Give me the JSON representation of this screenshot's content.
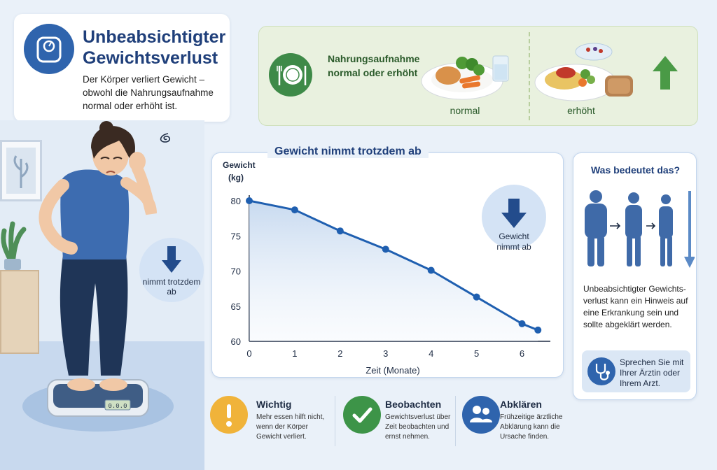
{
  "header": {
    "title": "Unbeabsichtigter Gewichtsverlust",
    "subtitle": "Der Körper verliert Gewicht – obwohl die Nahrungsaufnahme normal oder erhöht ist."
  },
  "food": {
    "heading": "Nahrungsaufnahme normal oder erhöht",
    "normal_label": "normal",
    "increased_label": "erhöht"
  },
  "person": {
    "badge_text": "nimmt trotzdem ab",
    "scale_display": "0.0.0"
  },
  "chart_data": {
    "type": "line",
    "title": "Gewicht nimmt trotzdem ab",
    "ylabel": "Gewicht (kg)",
    "xlabel": "Zeit (Monate)",
    "x": [
      0,
      1,
      2,
      3,
      4,
      5,
      6,
      6.35
    ],
    "y": [
      80,
      78.7,
      75.7,
      73.1,
      70.1,
      66.3,
      62.5,
      61.6
    ],
    "xlim": [
      0,
      6.5
    ],
    "ylim": [
      60,
      80
    ],
    "x_ticks": [
      "0",
      "1",
      "2",
      "3",
      "4",
      "5",
      "6"
    ],
    "y_ticks": [
      "80",
      "75",
      "70",
      "65",
      "60"
    ],
    "annotation": "Gewicht nimmt ab",
    "line_color": "#1f5fb0"
  },
  "info": {
    "title": "Was bedeutet das?",
    "text": "Unbeabsichtigter Gewichts-verlust kann ein Hinweis auf eine Erkrankung sein und sollte abgeklärt werden.",
    "doctor_text": "Sprechen Sie mit Ihrer Ärztin oder Ihrem Arzt."
  },
  "bottom": [
    {
      "title": "Wichtig",
      "text": "Mehr essen hilft nicht, wenn der Körper Gewicht verliert.",
      "color": "#f0b33a"
    },
    {
      "title": "Beobachten",
      "text": "Gewichtsverlust über Zeit beobachten und ernst nehmen.",
      "color": "#3d9448"
    },
    {
      "title": "Abklären",
      "text": "Frühzeitige ärztliche Abklärung kann die Ursache finden.",
      "color": "#2f64ad"
    }
  ],
  "colors": {
    "primary": "#2f64ad",
    "green": "#3e8a48",
    "accent_orange": "#f0b33a"
  }
}
